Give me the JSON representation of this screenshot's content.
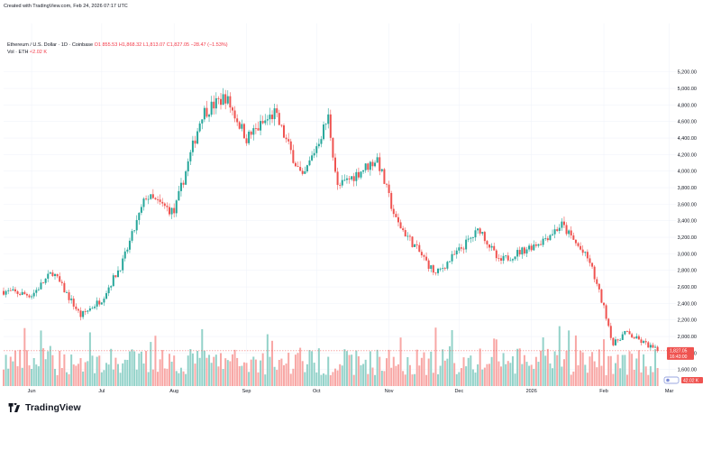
{
  "header": {
    "created": "Created with TradingView.com, Feb 24, 2026 07:17 UTC",
    "symbol": "Ethereum / U.S. Dollar · 1D · Coinbase",
    "ohlc": "O1,855.53 H1,868.32 L1,813.07 C1,827.05 −28.47 (−1.53%)",
    "vol_label": "Vol · ETH",
    "vol_value": "42.02 K"
  },
  "price_label": {
    "price": "1,827.05",
    "countdown": "16:43:00"
  },
  "vol_badge": "42.02 K",
  "footer": {
    "brand": "TradingView",
    "logo_icon": "tradingview-logo-icon"
  },
  "colors": {
    "up": "#26a69a",
    "down": "#ef5350",
    "up_vol": "#93d2c9",
    "down_vol": "#f8a7a5",
    "grid": "#f0f3fa"
  },
  "chart_data": {
    "type": "candlestick",
    "symbol": "ETH/USD",
    "y_ticks": [
      "1,600.00",
      "1,800.00",
      "2,000.00",
      "2,200.00",
      "2,400.00",
      "2,600.00",
      "2,800.00",
      "3,000.00",
      "3,200.00",
      "3,400.00",
      "3,600.00",
      "3,800.00",
      "4,000.00",
      "4,200.00",
      "4,400.00",
      "4,600.00",
      "4,800.00",
      "5,000.00",
      "5,200.00"
    ],
    "x_ticks": [
      "Jun",
      "Jul",
      "Aug",
      "Sep",
      "Oct",
      "Nov",
      "Dec",
      "2026",
      "Feb",
      "Mar"
    ],
    "ylim": [
      1400,
      5350
    ],
    "grid": true,
    "current_price": 1827.05,
    "close_path": [
      {
        "date": "2025-05-20",
        "close": 2550
      },
      {
        "date": "2025-06-01",
        "close": 2500
      },
      {
        "date": "2025-06-10",
        "close": 2780
      },
      {
        "date": "2025-06-22",
        "close": 2250
      },
      {
        "date": "2025-07-01",
        "close": 2450
      },
      {
        "date": "2025-07-10",
        "close": 2900
      },
      {
        "date": "2025-07-20",
        "close": 3700
      },
      {
        "date": "2025-08-01",
        "close": 3500
      },
      {
        "date": "2025-08-13",
        "close": 4700
      },
      {
        "date": "2025-08-23",
        "close": 4900
      },
      {
        "date": "2025-09-01",
        "close": 4400
      },
      {
        "date": "2025-09-13",
        "close": 4700
      },
      {
        "date": "2025-09-25",
        "close": 3900
      },
      {
        "date": "2025-10-06",
        "close": 4650
      },
      {
        "date": "2025-10-10",
        "close": 3800
      },
      {
        "date": "2025-10-27",
        "close": 4150
      },
      {
        "date": "2025-11-04",
        "close": 3400
      },
      {
        "date": "2025-11-21",
        "close": 2750
      },
      {
        "date": "2025-12-10",
        "close": 3300
      },
      {
        "date": "2025-12-18",
        "close": 2900
      },
      {
        "date": "2026-01-05",
        "close": 3150
      },
      {
        "date": "2026-01-14",
        "close": 3350
      },
      {
        "date": "2026-01-26",
        "close": 2900
      },
      {
        "date": "2026-02-02",
        "close": 2250
      },
      {
        "date": "2026-02-05",
        "close": 1900
      },
      {
        "date": "2026-02-10",
        "close": 2050
      },
      {
        "date": "2026-02-24",
        "close": 1827
      }
    ]
  }
}
